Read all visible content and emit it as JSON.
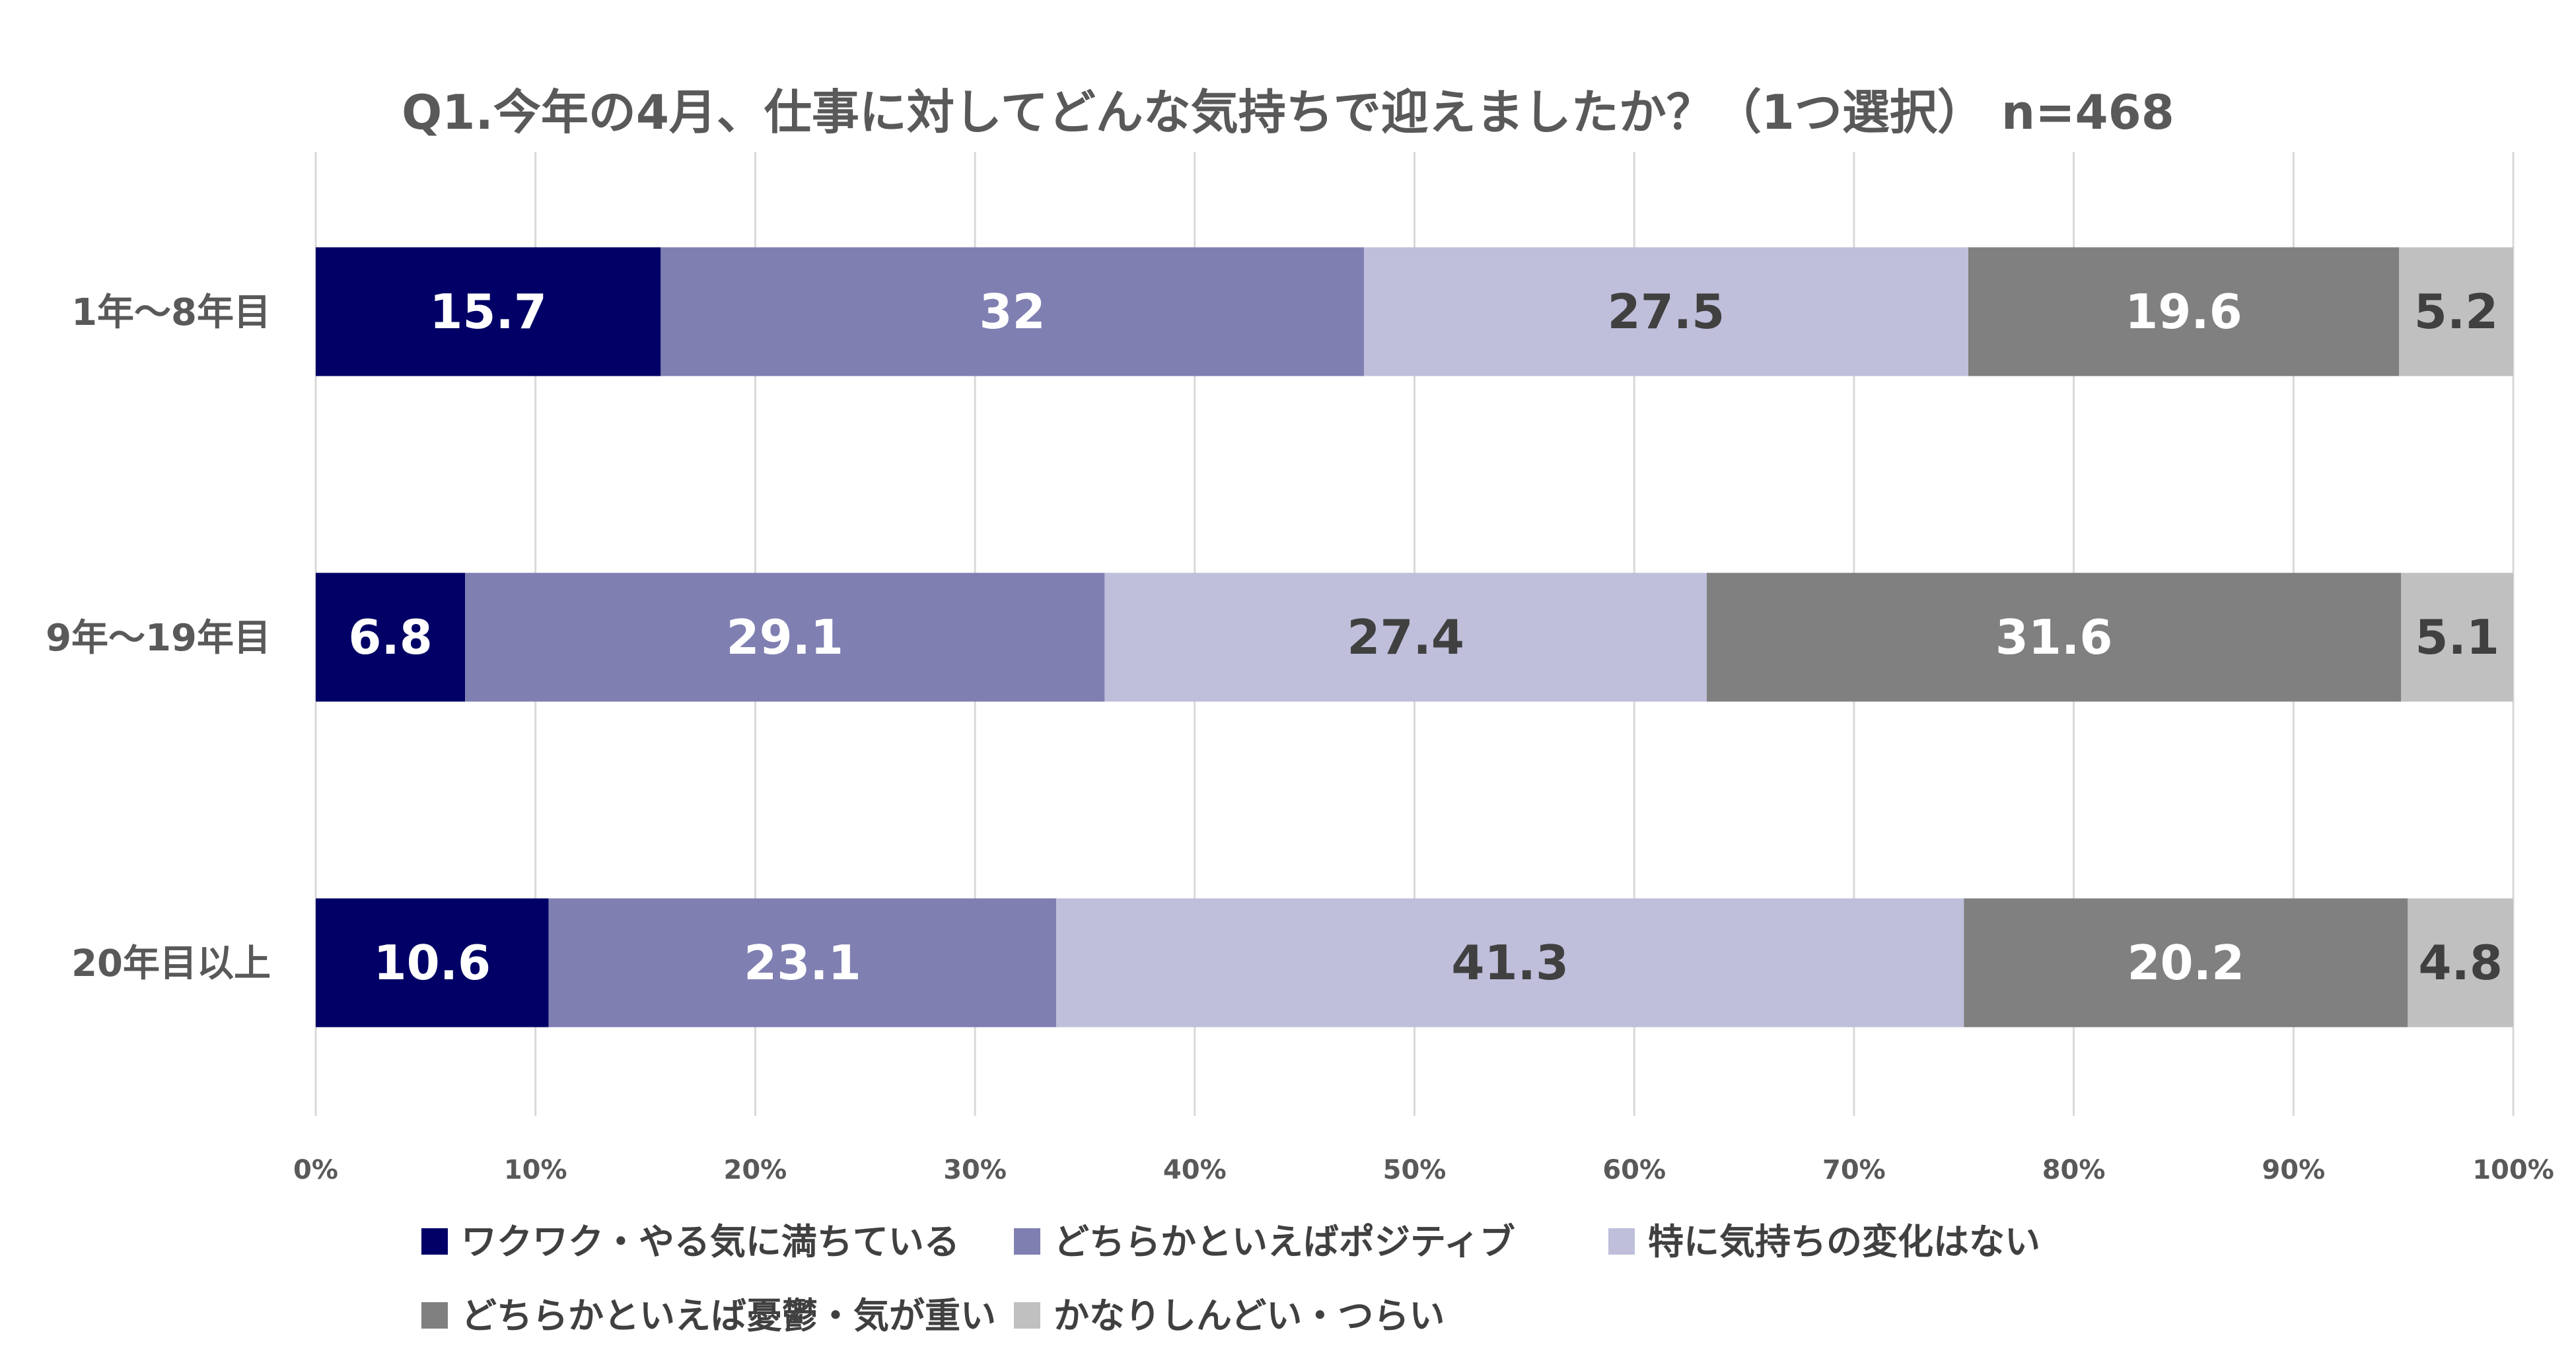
{
  "chart_data": {
    "type": "bar",
    "orientation": "horizontal",
    "stacked": true,
    "stack_mode": "percent",
    "title": "Q1.今年の4月、仕事に対してどんな気持ちで迎えましたか？（1つ選択） n=468",
    "categories": [
      "1年～8年目",
      "9年～19年目",
      "20年目以上"
    ],
    "series": [
      {
        "name": "ワクワク・やる気に満ちている",
        "values": [
          15.7,
          6.8,
          10.6
        ],
        "color": "#000066",
        "label_color": "#ffffff"
      },
      {
        "name": "どちらかといえばポジティブ",
        "values": [
          32,
          29.1,
          23.1
        ],
        "color": "#7f7fb2",
        "label_color": "#ffffff"
      },
      {
        "name": "特に気持ちの変化はない",
        "values": [
          27.5,
          27.4,
          41.3
        ],
        "color": "#bfbfdb",
        "label_color": "#404040"
      },
      {
        "name": "どちらかといえば憂鬱・気が重い",
        "values": [
          19.6,
          31.6,
          20.2
        ],
        "color": "#808080",
        "label_color": "#ffffff"
      },
      {
        "name": "かなりしんどい・つらい",
        "values": [
          5.2,
          5.1,
          4.8
        ],
        "color": "#c0c0c0",
        "label_color": "#404040"
      }
    ],
    "xlim": [
      0,
      100
    ],
    "x_ticks": [
      "0%",
      "10%",
      "20%",
      "30%",
      "40%",
      "50%",
      "60%",
      "70%",
      "80%",
      "90%",
      "100%"
    ],
    "grid": true,
    "legend_position": "bottom"
  }
}
